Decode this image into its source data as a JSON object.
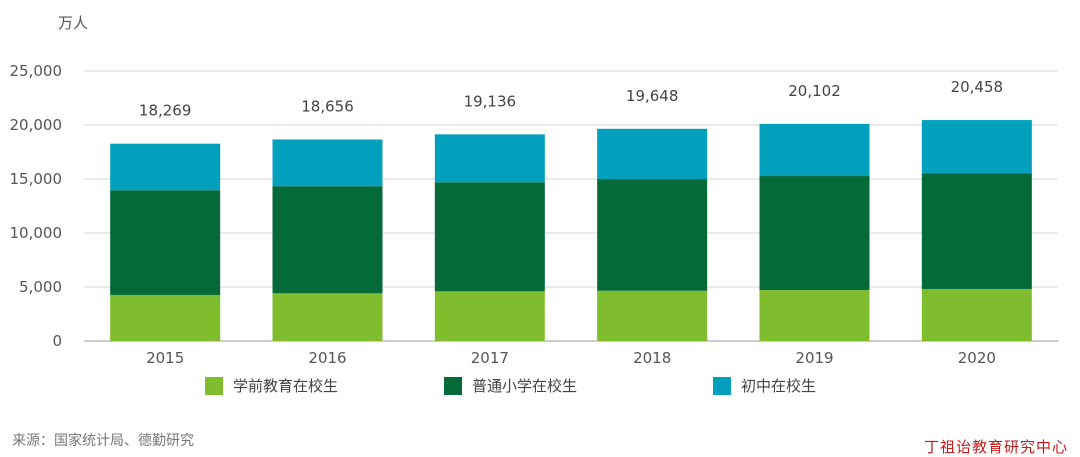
{
  "chart_data": {
    "type": "bar",
    "stacked": true,
    "unit_label": "万人",
    "categories": [
      "2015",
      "2016",
      "2017",
      "2018",
      "2019",
      "2020"
    ],
    "series": [
      {
        "name": "学前教育在校生",
        "color": "#7fbd2f",
        "values": [
          4265,
          4414,
          4600,
          4656,
          4714,
          4818
        ]
      },
      {
        "name": "普通小学在校生",
        "color": "#046a38",
        "values": [
          9692,
          9913,
          10094,
          10339,
          10561,
          10725
        ]
      },
      {
        "name": "初中在校生",
        "color": "#02a0bd",
        "values": [
          4312,
          4329,
          4442,
          4653,
          4827,
          4915
        ]
      }
    ],
    "totals": [
      "18,269",
      "18,656",
      "19,136",
      "19,648",
      "20,102",
      "20,458"
    ],
    "ylim": [
      0,
      25000
    ],
    "yticks": [
      "0",
      "5,000",
      "10,000",
      "15,000",
      "20,000",
      "25,000"
    ],
    "grid": true,
    "legend_position": "bottom"
  },
  "source": "来源：国家统计局、德勤研究",
  "watermark": "丁祖诒教育研究中心"
}
